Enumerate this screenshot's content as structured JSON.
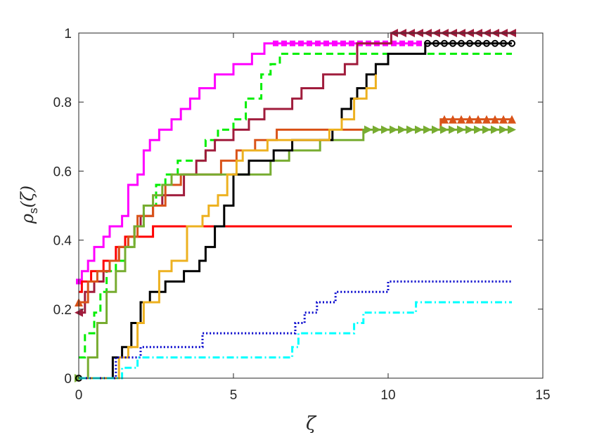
{
  "chart_data": {
    "type": "line",
    "title": "",
    "xlabel": "ζ",
    "ylabel_main": "ρ",
    "ylabel_sub": "s",
    "ylabel_arg": "(ζ)",
    "xlim": [
      0,
      15
    ],
    "ylim": [
      0,
      1
    ],
    "xticks": [
      0,
      5,
      10,
      15
    ],
    "xtick_labels": [
      "0",
      "5",
      "10",
      "15"
    ],
    "yticks": [
      0,
      0.2,
      0.4,
      0.6,
      0.8,
      1
    ],
    "ytick_labels": [
      "0",
      "0.2",
      "0.4",
      "0.6",
      "0.8",
      "1"
    ],
    "grid": false,
    "legend": "none",
    "series": [
      {
        "color": "#FF00FF",
        "dash": "solid",
        "marker": "square",
        "x": [
          0,
          0.1,
          0.3,
          0.5,
          0.8,
          1.0,
          1.4,
          1.6,
          1.9,
          2.1,
          2.3,
          2.6,
          3.0,
          3.3,
          3.6,
          3.9,
          4.4,
          5.0,
          5.6,
          6.0,
          6.3,
          11.0
        ],
        "y": [
          0.28,
          0.31,
          0.34,
          0.38,
          0.41,
          0.44,
          0.47,
          0.56,
          0.59,
          0.66,
          0.69,
          0.72,
          0.75,
          0.78,
          0.81,
          0.84,
          0.88,
          0.91,
          0.94,
          0.97,
          0.97,
          0.97
        ]
      },
      {
        "color": "#00EE00",
        "dash": "dashed",
        "marker": "none",
        "x": [
          0,
          0.2,
          0.5,
          0.7,
          0.9,
          1.2,
          1.5,
          1.8,
          2.1,
          2.5,
          2.8,
          3.2,
          4.1,
          4.5,
          5.0,
          5.4,
          5.9,
          6.2,
          6.5,
          14.0
        ],
        "y": [
          0.06,
          0.13,
          0.19,
          0.25,
          0.31,
          0.34,
          0.38,
          0.44,
          0.5,
          0.56,
          0.59,
          0.63,
          0.69,
          0.72,
          0.75,
          0.81,
          0.88,
          0.91,
          0.94,
          0.94
        ]
      },
      {
        "color": "#A01C3C",
        "dash": "solid",
        "marker": "triangle-left",
        "x": [
          0,
          0.2,
          0.5,
          0.8,
          1.0,
          1.3,
          1.6,
          1.8,
          2.0,
          2.4,
          2.7,
          3.4,
          3.8,
          4.1,
          4.4,
          5.0,
          5.5,
          6.0,
          6.9,
          7.2,
          7.9,
          8.6,
          9.0,
          10.1,
          14.0
        ],
        "y": [
          0.19,
          0.25,
          0.28,
          0.31,
          0.34,
          0.38,
          0.41,
          0.44,
          0.47,
          0.5,
          0.53,
          0.59,
          0.63,
          0.66,
          0.69,
          0.72,
          0.75,
          0.78,
          0.81,
          0.84,
          0.88,
          0.91,
          0.97,
          1.0,
          1.0
        ]
      },
      {
        "color": "#FF0000",
        "dash": "solid",
        "marker": "none",
        "x": [
          0,
          0.1,
          0.4,
          0.8,
          1.2,
          1.5,
          2.0,
          2.4,
          14.0
        ],
        "y": [
          0.25,
          0.28,
          0.31,
          0.34,
          0.38,
          0.41,
          0.41,
          0.44,
          0.44
        ]
      },
      {
        "color": "#D95319",
        "dash": "solid",
        "marker": "triangle-up",
        "x": [
          0,
          0.3,
          0.6,
          1.0,
          1.3,
          1.6,
          1.9,
          2.4,
          2.8,
          3.3,
          4.0,
          4.6,
          5.1,
          5.7,
          6.4,
          7.0,
          7.6,
          8.4,
          9.0,
          11.7,
          14.0
        ],
        "y": [
          0.22,
          0.28,
          0.31,
          0.34,
          0.38,
          0.41,
          0.47,
          0.5,
          0.56,
          0.59,
          0.59,
          0.63,
          0.66,
          0.69,
          0.72,
          0.72,
          0.72,
          0.72,
          0.72,
          0.75,
          0.75
        ]
      },
      {
        "color": "#77AC30",
        "dash": "solid",
        "marker": "triangle-right",
        "x": [
          0,
          0.3,
          0.6,
          0.9,
          1.2,
          1.5,
          1.8,
          2.1,
          2.4,
          2.7,
          3.0,
          3.4,
          5.5,
          6.2,
          6.8,
          7.3,
          7.8,
          8.3,
          8.7,
          9.2,
          14.0
        ],
        "y": [
          0,
          0.06,
          0.16,
          0.25,
          0.31,
          0.38,
          0.44,
          0.5,
          0.53,
          0.56,
          0.59,
          0.59,
          0.59,
          0.63,
          0.66,
          0.66,
          0.69,
          0.69,
          0.69,
          0.72,
          0.72
        ]
      },
      {
        "color": "#000000",
        "dash": "solid",
        "marker": "circle",
        "x": [
          0,
          1.1,
          1.4,
          1.7,
          2.0,
          2.3,
          2.8,
          3.4,
          3.9,
          4.1,
          4.4,
          4.7,
          5.0,
          5.5,
          6.3,
          6.9,
          8.2,
          8.5,
          8.8,
          9.0,
          9.3,
          9.6,
          10.0,
          11.2,
          14.0
        ],
        "y": [
          0,
          0.06,
          0.09,
          0.16,
          0.22,
          0.25,
          0.28,
          0.31,
          0.34,
          0.38,
          0.44,
          0.5,
          0.59,
          0.63,
          0.66,
          0.69,
          0.72,
          0.78,
          0.81,
          0.84,
          0.88,
          0.91,
          0.94,
          0.97,
          0.97
        ]
      },
      {
        "color": "#EDB120",
        "dash": "solid",
        "marker": "none",
        "x": [
          0,
          1.3,
          1.6,
          1.9,
          2.1,
          2.6,
          3.0,
          3.5,
          4.0,
          4.2,
          4.5,
          4.8,
          5.1,
          5.3,
          5.6,
          6.1,
          6.9,
          8.1,
          8.5,
          8.9,
          9.3,
          9.6
        ],
        "y": [
          0,
          0.06,
          0.09,
          0.16,
          0.22,
          0.31,
          0.34,
          0.44,
          0.47,
          0.5,
          0.53,
          0.59,
          0.63,
          0.66,
          0.66,
          0.69,
          0.69,
          0.72,
          0.75,
          0.81,
          0.84,
          0.88
        ]
      },
      {
        "color": "#0000CC",
        "dash": "dotted",
        "marker": "none",
        "x": [
          0,
          1.2,
          1.5,
          2.0,
          2.6,
          4.0,
          5.2,
          6.3,
          7.0,
          7.3,
          7.7,
          8.3,
          9.0,
          10.0,
          14.0
        ],
        "y": [
          0,
          0.06,
          0.06,
          0.09,
          0.09,
          0.13,
          0.13,
          0.13,
          0.16,
          0.19,
          0.22,
          0.25,
          0.25,
          0.28,
          0.28
        ]
      },
      {
        "color": "#00FFFF",
        "dash": "dashdot",
        "marker": "none",
        "x": [
          0,
          1.4,
          1.9,
          2.8,
          4.0,
          5.2,
          6.9,
          7.1,
          8.9,
          9.2,
          10.9,
          14.0
        ],
        "y": [
          0,
          0.03,
          0.06,
          0.06,
          0.06,
          0.06,
          0.09,
          0.13,
          0.16,
          0.19,
          0.22,
          0.22
        ]
      }
    ]
  }
}
